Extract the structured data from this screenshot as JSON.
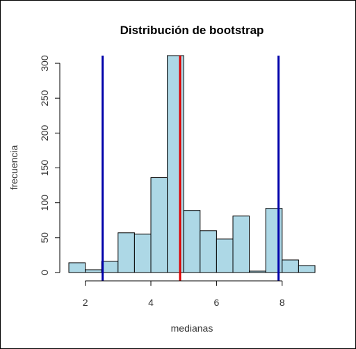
{
  "chart_data": {
    "type": "bar",
    "title": "Distribución de bootstrap",
    "xlabel": "medianas",
    "ylabel": "frecuencia",
    "bins": [
      {
        "start": 1.5,
        "end": 2.0,
        "count": 14
      },
      {
        "start": 2.0,
        "end": 2.5,
        "count": 4
      },
      {
        "start": 2.5,
        "end": 3.0,
        "count": 16
      },
      {
        "start": 3.0,
        "end": 3.5,
        "count": 57
      },
      {
        "start": 3.5,
        "end": 4.0,
        "count": 55
      },
      {
        "start": 4.0,
        "end": 4.5,
        "count": 136
      },
      {
        "start": 4.5,
        "end": 5.0,
        "count": 311
      },
      {
        "start": 5.0,
        "end": 5.5,
        "count": 89
      },
      {
        "start": 5.5,
        "end": 6.0,
        "count": 60
      },
      {
        "start": 6.0,
        "end": 6.5,
        "count": 48
      },
      {
        "start": 6.5,
        "end": 7.0,
        "count": 81
      },
      {
        "start": 7.0,
        "end": 7.5,
        "count": 2
      },
      {
        "start": 7.5,
        "end": 8.0,
        "count": 92
      },
      {
        "start": 8.0,
        "end": 8.5,
        "count": 18
      },
      {
        "start": 8.5,
        "end": 9.0,
        "count": 10
      }
    ],
    "bar_color": "#add8e6",
    "bar_border": "#000000",
    "x_ticks": [
      2,
      4,
      6,
      8
    ],
    "y_ticks": [
      0,
      50,
      100,
      150,
      200,
      250,
      300
    ],
    "xlim": [
      1.5,
      9.0
    ],
    "ylim": [
      0,
      311
    ],
    "vlines": [
      {
        "x": 2.53,
        "color": "#0000aa"
      },
      {
        "x": 4.89,
        "color": "#dd0000"
      },
      {
        "x": 7.89,
        "color": "#0000aa"
      }
    ],
    "grid": false
  }
}
